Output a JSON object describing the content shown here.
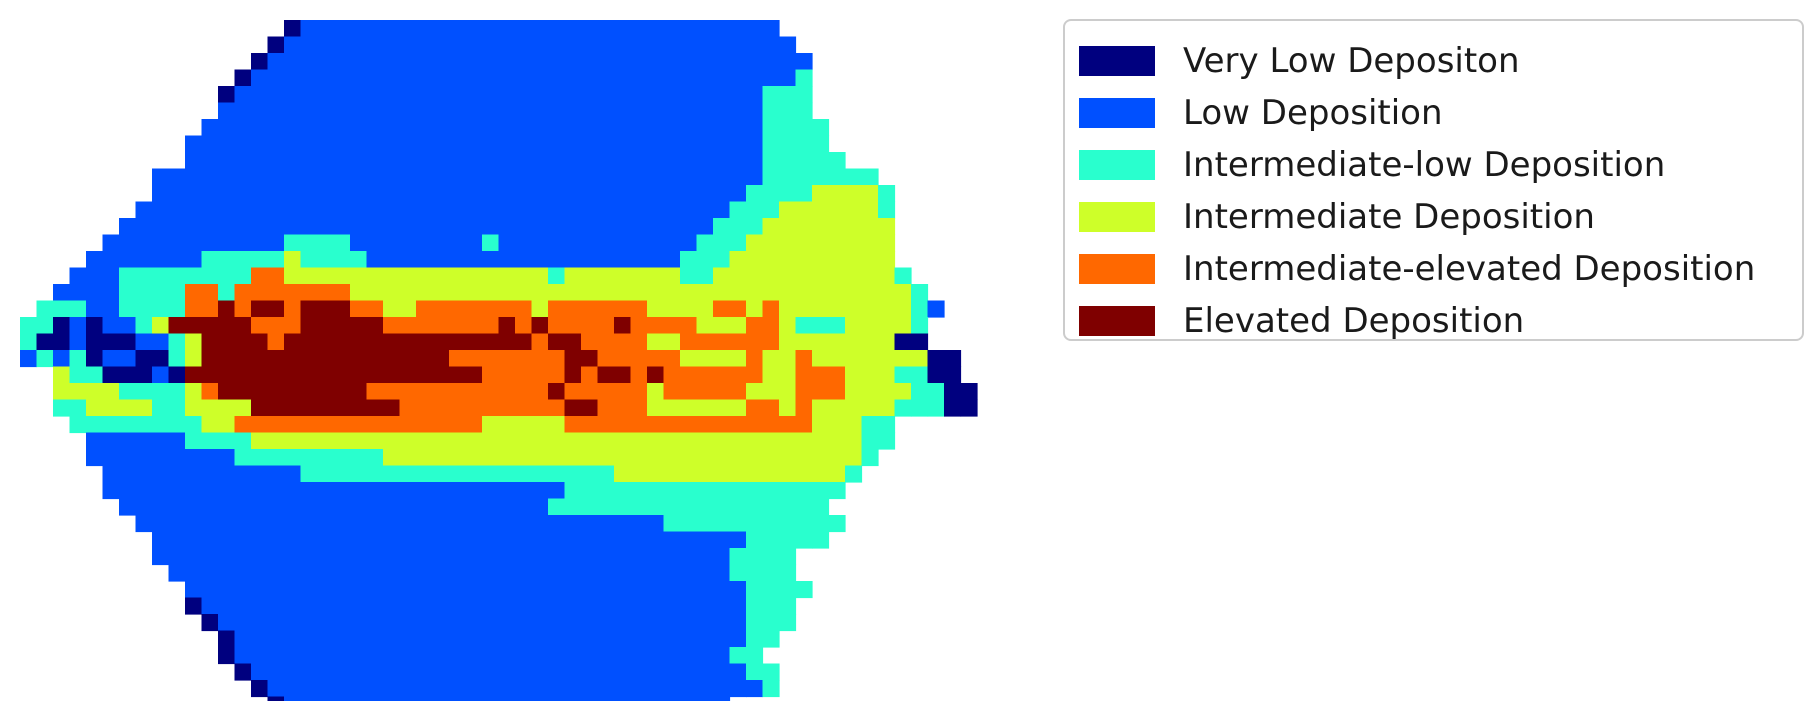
{
  "chart_data": {
    "type": "heatmap",
    "title": "",
    "xlabel": "",
    "ylabel": "",
    "axes_visible": false,
    "legend_placement": "upper right, outside plot",
    "categories": [
      {
        "name": "Very Low Depositon",
        "color": "#00007f"
      },
      {
        "name": "Low Deposition",
        "color": "#0050ff"
      },
      {
        "name": "Intermediate-low Deposition",
        "color": "#29ffce"
      },
      {
        "name": "Intermediate Deposition",
        "color": "#ceff29"
      },
      {
        "name": "Intermediate-elevated Deposition",
        "color": "#ff6800"
      },
      {
        "name": "Elevated Deposition",
        "color": "#7f0000"
      }
    ],
    "grid_encoding": "row strings; '.' = empty, 0..5 = category index",
    "grid": [
      "................011111111111111111111111111111.........",
      "...............01111111111111111111111111111111........",
      "..............0111111111111111111111111111111111.......",
      ".............01111111111111111111111111111111112.......",
      "............011111111111111111111111111111111222.......",
      "............111111111111111111111111111111111222.......",
      "...........11111111111111111111111111111111112222......",
      "..........111111111111111111111111111111111112222......",
      "..........1111111111111111111111111111111111122222.....",
      "........11111111111111111111111111111111111112222222...",
      "........111111111111111111111111111111111111222233332..",
      ".......1111111111111111111111111111111111112223333332..",
      "......11111111111111111111111111111111111122233333333..",
      ".....111111111112222111111112111111111111222333333333..",
      "....1111111222223222211111111111111111112223333333333..",
      "...111222222224433333333333333332333333322333333333332.",
      "..11112222442444444433333333333333333333333333333333332",
      ".2221122224454554555443344444443444444333344343333333321",
      "2201011235555544455555444444454544445444433344322233332",
      "2001000112355554555555555555555455444433444444333333300",
      "121201100235555555555555554444444554444433334334333333300",
      "..3220001055555555555555555544444545545444444334443332200",
      "..33332222345555555554444444444454444434444433344433332200",
      "..22333322333355555555544444444445544433333344343333322200",
      "...22222222334444444444444443333344444444444444433322....",
      "....1111112222333333333333333333333333333333333333322....",
      "....111111111222222222333333333333333333333333333332.....",
      ".....1111111111112222222222222222222333333333333332......",
      ".....111111111111111111111111111122222222222222222.......",
      "......1111111111111111111111111122222222222222222........",
      ".......1111111111111111111111111111111122222222222.......",
      "........11111111111111111111111111111111111122222........",
      "........111111111111111111111111111111111112222..........",
      ".........11111111111111111111111111111111112222..........",
      "..........11111111111111111111111111111111112222.........",
      "..........0111111111111111111111111111111111222..........",
      "...........011111111111111111111111111111111222..........",
      "............0111111111111111111111111111111122...........",
      "............011111111111111111111111111111122............",
      ".............011111111111111111111111111111122...........",
      "..............01111111111111111111111111111112...........",
      "...............0111111111111111111111111111............",
      "................0111111111111111111111111111............"
    ]
  }
}
